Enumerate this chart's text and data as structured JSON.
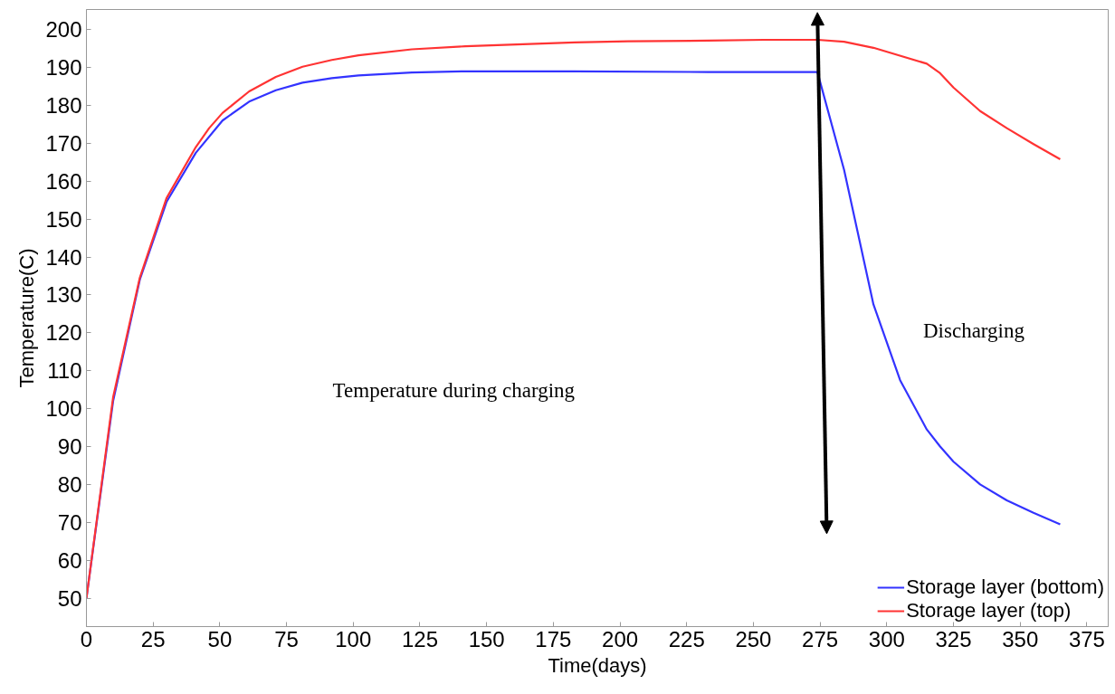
{
  "chart_data": {
    "type": "line",
    "xlabel": "Time(days)",
    "ylabel": "Temperature(C)",
    "xlim": [
      0,
      383
    ],
    "ylim": [
      42.5,
      205.3
    ],
    "xticks": [
      0,
      25,
      50,
      75,
      100,
      125,
      150,
      175,
      200,
      225,
      250,
      275,
      300,
      325,
      350,
      375
    ],
    "yticks": [
      50,
      60,
      70,
      80,
      90,
      100,
      110,
      120,
      130,
      140,
      150,
      160,
      170,
      180,
      190,
      200
    ],
    "grid": false,
    "legend": "bottom right",
    "marker": "none",
    "line_style": "solid",
    "series": [
      {
        "name": "Storage layer (bottom)",
        "color": "#3333ff",
        "x": [
          0,
          10,
          20,
          30,
          41,
          51,
          61,
          71,
          81,
          92,
          102,
          122,
          142,
          183,
          233,
          274,
          284,
          295,
          305,
          315,
          320,
          325,
          335,
          345,
          355,
          365
        ],
        "values": [
          50,
          102,
          134,
          154.5,
          167.5,
          176,
          181,
          184,
          186,
          187.2,
          187.9,
          188.7,
          189,
          189,
          188.8,
          188.8,
          163,
          127.5,
          107.5,
          94.5,
          90,
          86,
          80,
          75.8,
          72.5,
          69.5
        ]
      },
      {
        "name": "Storage layer (top)",
        "color": "#ff3333",
        "x": [
          0,
          10,
          20,
          30,
          41,
          46,
          51,
          61,
          71,
          81,
          92,
          102,
          122,
          142,
          183,
          203,
          233,
          254,
          274,
          284,
          295,
          315,
          320,
          325,
          335,
          345,
          355,
          365
        ],
        "values": [
          50,
          103,
          134.5,
          155.5,
          169,
          174,
          178,
          183.7,
          187.5,
          190.2,
          192,
          193.2,
          194.8,
          195.6,
          196.6,
          196.9,
          197.1,
          197.3,
          197.3,
          196.8,
          195.2,
          191,
          188.5,
          184.7,
          178.5,
          174,
          169.8,
          165.8
        ]
      }
    ],
    "annotations": [
      "Temperature during charging",
      "Discharging"
    ]
  }
}
